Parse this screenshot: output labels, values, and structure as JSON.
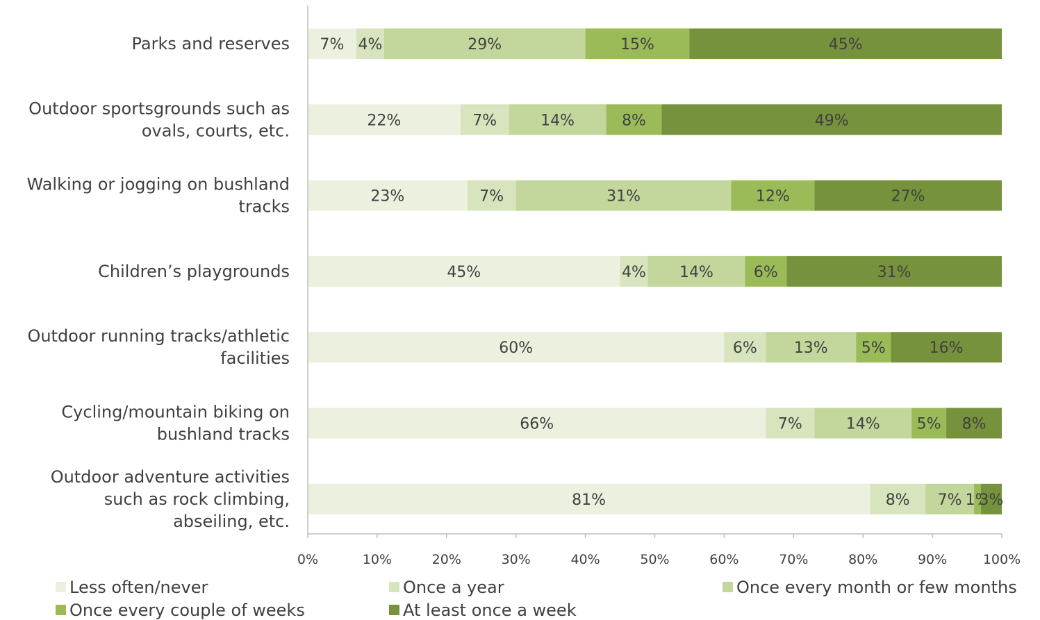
{
  "chart_data": {
    "type": "bar",
    "orientation": "horizontal",
    "stacked": true,
    "categories": [
      [
        "Parks and reserves"
      ],
      [
        "Outdoor sportsgrounds such as",
        "ovals, courts, etc."
      ],
      [
        "Walking or jogging on bushland",
        "tracks"
      ],
      [
        "Children’s playgrounds"
      ],
      [
        "Outdoor running tracks/athletic",
        "facilities"
      ],
      [
        "Cycling/mountain biking on",
        "bushland tracks"
      ],
      [
        "Outdoor adventure activities",
        "such as rock climbing,",
        "abseiling, etc."
      ]
    ],
    "series": [
      {
        "name": "Less often/never",
        "color": "#ebf1de",
        "values": [
          7,
          22,
          23,
          45,
          60,
          66,
          81
        ],
        "labels": [
          "7%",
          "22%",
          "23%",
          "45%",
          "60%",
          "66%",
          "81%"
        ]
      },
      {
        "name": "Once a year",
        "color": "#d7e4bd",
        "values": [
          4,
          7,
          7,
          4,
          6,
          7,
          8
        ],
        "labels": [
          "4%",
          "7%",
          "7%",
          "4%",
          "6%",
          "7%",
          "8%"
        ]
      },
      {
        "name": "Once every month or few months",
        "color": "#c3d69b",
        "values": [
          29,
          14,
          31,
          14,
          13,
          14,
          7
        ],
        "labels": [
          "29%",
          "14%",
          "31%",
          "14%",
          "13%",
          "14%",
          "7%"
        ]
      },
      {
        "name": "Once every couple of weeks",
        "color": "#9bbb59",
        "values": [
          15,
          8,
          12,
          6,
          5,
          5,
          1
        ],
        "labels": [
          "15%",
          "8%",
          "12%",
          "6%",
          "5%",
          "5%",
          "1%"
        ]
      },
      {
        "name": "At least once a week",
        "color": "#76923c",
        "values": [
          45,
          49,
          27,
          31,
          16,
          8,
          3
        ],
        "labels": [
          "45%",
          "49%",
          "27%",
          "31%",
          "16%",
          "8%",
          "3%"
        ]
      }
    ],
    "xlim": [
      0,
      100
    ],
    "xticks": [
      "0%",
      "10%",
      "20%",
      "30%",
      "40%",
      "50%",
      "60%",
      "70%",
      "80%",
      "90%",
      "100%"
    ],
    "grid": false,
    "legend": "bottom"
  }
}
